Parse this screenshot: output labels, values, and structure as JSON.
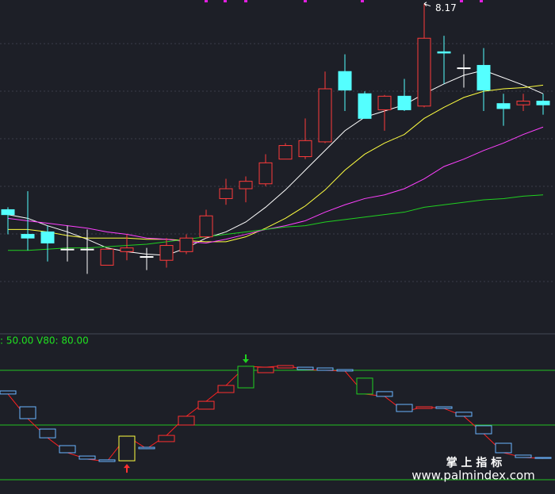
{
  "chart_data": [
    {
      "type": "candlestick",
      "open": [
        6.5,
        6.3,
        6.32,
        6.18,
        6.18,
        6.05,
        6.16,
        6.12,
        6.09,
        6.16,
        6.28,
        6.59,
        6.67,
        6.71,
        6.91,
        6.93,
        7.05,
        7.62,
        7.44,
        7.31,
        7.42,
        7.34,
        7.78,
        7.65,
        7.67,
        7.36,
        7.35,
        7.38
      ],
      "close": [
        6.46,
        6.27,
        6.23,
        6.18,
        6.18,
        6.18,
        6.19,
        6.12,
        6.21,
        6.27,
        6.45,
        6.67,
        6.73,
        6.88,
        7.02,
        7.06,
        7.48,
        7.47,
        7.24,
        7.42,
        7.31,
        7.89,
        7.77,
        7.65,
        7.47,
        7.32,
        7.38,
        7.35
      ],
      "high": [
        6.52,
        6.65,
        6.37,
        6.37,
        6.34,
        6.19,
        6.3,
        6.19,
        6.27,
        6.3,
        6.5,
        6.75,
        6.77,
        6.95,
        7.04,
        7.24,
        7.62,
        7.76,
        7.46,
        7.43,
        7.56,
        8.17,
        7.91,
        7.76,
        7.81,
        7.44,
        7.44,
        7.44
      ],
      "low": [
        6.3,
        6.17,
        6.08,
        6.08,
        5.98,
        6.05,
        6.09,
        6.01,
        6.03,
        6.14,
        6.27,
        6.54,
        6.56,
        6.69,
        6.91,
        6.91,
        7.04,
        7.3,
        7.24,
        7.14,
        7.3,
        7.33,
        7.52,
        7.49,
        7.3,
        7.18,
        7.3,
        7.27
      ],
      "up_color": "#ff3b3b",
      "down_color": "#54ffff",
      "flat_color": "#ffffff",
      "ylim": [
        5.5,
        8.2
      ],
      "annotation": "8.17",
      "lines": [
        {
          "color": "#ffffff",
          "values": [
            6.46,
            6.43,
            6.37,
            6.32,
            6.26,
            6.19,
            6.16,
            6.14,
            6.13,
            6.19,
            6.27,
            6.32,
            6.4,
            6.52,
            6.66,
            6.82,
            6.98,
            7.14,
            7.25,
            7.3,
            7.35,
            7.44,
            7.52,
            7.59,
            7.63,
            7.57,
            7.51,
            7.44
          ]
        },
        {
          "color": "#ffff40",
          "values": [
            6.34,
            6.34,
            6.32,
            6.29,
            6.27,
            6.27,
            6.27,
            6.26,
            6.26,
            6.25,
            6.24,
            6.24,
            6.28,
            6.35,
            6.43,
            6.53,
            6.66,
            6.82,
            6.95,
            7.04,
            7.11,
            7.24,
            7.33,
            7.41,
            7.46,
            7.48,
            7.49,
            7.51
          ]
        },
        {
          "color": "#ff40ff",
          "values": [
            6.43,
            6.41,
            6.39,
            6.37,
            6.35,
            6.32,
            6.3,
            6.27,
            6.26,
            6.24,
            6.23,
            6.26,
            6.3,
            6.34,
            6.37,
            6.41,
            6.48,
            6.54,
            6.59,
            6.62,
            6.67,
            6.75,
            6.85,
            6.91,
            6.98,
            7.04,
            7.11,
            7.17
          ]
        },
        {
          "color": "#20d020",
          "values": [
            6.17,
            6.17,
            6.18,
            6.19,
            6.19,
            6.2,
            6.21,
            6.22,
            6.24,
            6.26,
            6.28,
            6.3,
            6.32,
            6.34,
            6.36,
            6.37,
            6.4,
            6.42,
            6.44,
            6.46,
            6.48,
            6.52,
            6.54,
            6.56,
            6.58,
            6.59,
            6.61,
            6.62
          ]
        }
      ]
    },
    {
      "type": "indicator",
      "label": ": 50.00  V80: 80.00",
      "open": [
        68.7,
        60.0,
        47.8,
        38.7,
        33.0,
        30.9,
        30.4,
        37.8,
        40.9,
        50.0,
        58.7,
        67.8,
        70.4,
        78.7,
        81.3,
        81.7,
        81.3,
        80.4,
        75.7,
        68.3,
        61.3,
        59.1,
        60.0,
        57.0,
        49.6,
        40.0,
        33.5,
        32.2
      ],
      "close": [
        67.0,
        53.5,
        43.0,
        34.8,
        31.3,
        30.0,
        43.9,
        37.0,
        44.3,
        54.8,
        63.0,
        71.7,
        82.2,
        81.7,
        82.6,
        80.4,
        80.0,
        79.6,
        67.0,
        65.7,
        57.4,
        60.0,
        59.1,
        54.8,
        45.2,
        34.8,
        32.2,
        31.7
      ],
      "up_color": "#ff3030",
      "down_color": "#6ab4ff",
      "line_color": "#ff2020",
      "ylim": [
        0,
        100
      ],
      "yticks": [
        20,
        50,
        80
      ],
      "reference_color": "#22c022",
      "buy_signals": [
        6
      ],
      "sell_signals": [
        12,
        18
      ],
      "buy_color": "#ffff40",
      "sell_color": "#20d020"
    }
  ],
  "watermark": {
    "title": "掌 上 指 标",
    "url": "www.palmindex.com"
  }
}
